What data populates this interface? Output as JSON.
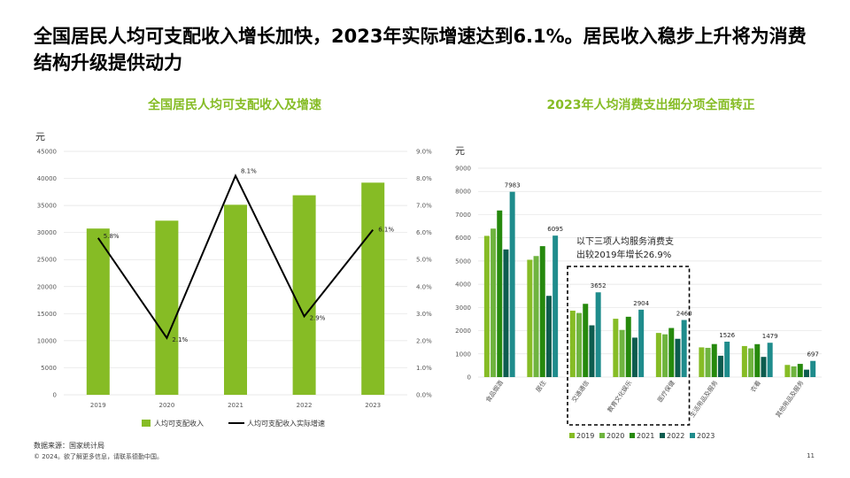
{
  "headline": "全国居民人均可支配收入增长加快，2023年实际增速达到6.1%。居民收入稳步上升将为消费结构升级提供动力",
  "footer": {
    "source": "数据来源：国家统计局",
    "copyright": "© 2024。欲了解更多信息，请联系德勤中国。",
    "page": "11"
  },
  "colors": {
    "title_green": "#86bc25",
    "bar_income": "#86bc25",
    "line_growth": "#000000",
    "series": [
      "#86bc25",
      "#6fb43f",
      "#26890d",
      "#0d5c4f",
      "#1f8c8c"
    ]
  },
  "chart_data": [
    {
      "type": "bar",
      "title": "全国居民人均可支配收入及增速",
      "unit": "元",
      "categories": [
        "2019",
        "2020",
        "2021",
        "2022",
        "2023"
      ],
      "y_ticks": [
        "0",
        "5000",
        "10000",
        "15000",
        "20000",
        "25000",
        "30000",
        "35000",
        "40000",
        "45000"
      ],
      "y2_ticks": [
        "0.0%",
        "1.0%",
        "2.0%",
        "3.0%",
        "4.0%",
        "5.0%",
        "6.0%",
        "7.0%",
        "8.0%",
        "9.0%"
      ],
      "ylim": [
        0,
        45000
      ],
      "y2lim": [
        0,
        9
      ],
      "series": [
        {
          "name": "人均可支配收入",
          "kind": "bar",
          "values": [
            30733,
            32189,
            35128,
            36883,
            39218
          ]
        },
        {
          "name": "人均可支配收入实际增速",
          "kind": "line",
          "axis": "right",
          "values": [
            5.8,
            2.1,
            8.1,
            2.9,
            6.1
          ],
          "labels": [
            "5.8%",
            "2.1%",
            "8.1%",
            "2.9%",
            "6.1%"
          ]
        }
      ],
      "legend_position": "bottom"
    },
    {
      "type": "bar",
      "title": "2023年人均消费支出细分项全面转正",
      "unit": "元",
      "categories": [
        "食品烟酒",
        "居住",
        "交通通信",
        "教育文化娱乐",
        "医疗保健",
        "生活用品及服务",
        "衣着",
        "其他用品及服务"
      ],
      "y_ticks": [
        "0",
        "1000",
        "2000",
        "3000",
        "4000",
        "5000",
        "6000",
        "7000",
        "8000",
        "9000"
      ],
      "ylim": [
        0,
        9000
      ],
      "series": [
        {
          "name": "2019",
          "values": [
            6084,
            5055,
            2862,
            2513,
            1902,
            1281,
            1338,
            524
          ]
        },
        {
          "name": "2020",
          "values": [
            6397,
            5215,
            2762,
            2032,
            1843,
            1260,
            1238,
            462
          ]
        },
        {
          "name": "2021",
          "values": [
            7178,
            5641,
            3156,
            2599,
            2115,
            1423,
            1419,
            569
          ]
        },
        {
          "name": "2022",
          "values": [
            5500,
            3500,
            2230,
            1700,
            1650,
            920,
            870,
            320
          ]
        },
        {
          "name": "2023",
          "values": [
            7983,
            6095,
            3652,
            2904,
            2460,
            1526,
            1479,
            697
          ]
        }
      ],
      "value_labels": [
        "7983",
        "6095",
        "3652",
        "2904",
        "2460",
        "1526",
        "1479",
        "697"
      ],
      "annotation": "以下三项人均服务消费支出较2019年增长26.9%",
      "annotation_lines": [
        "以下三项人均服务消费支",
        "出较2019年增长26.9%"
      ],
      "legend_position": "bottom"
    }
  ]
}
